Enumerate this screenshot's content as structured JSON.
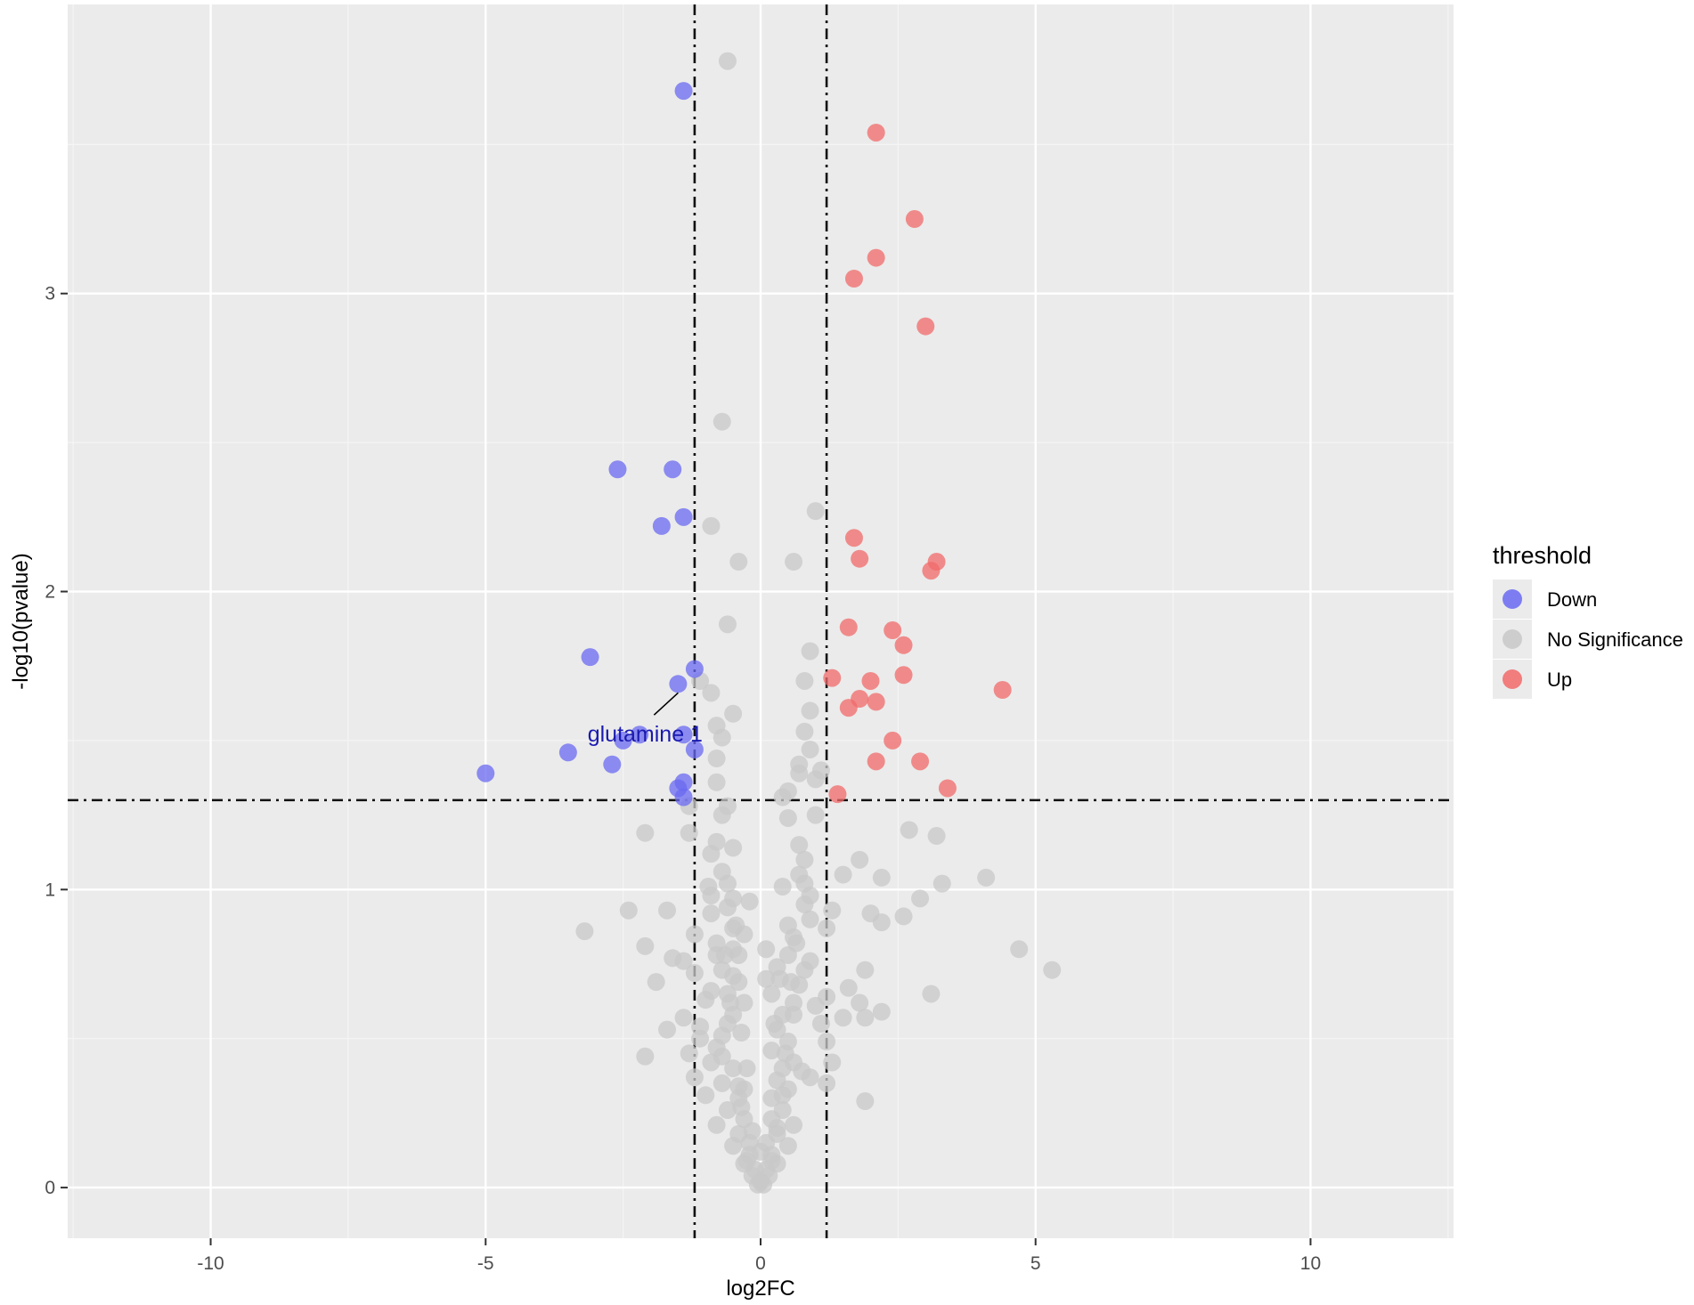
{
  "chart_data": {
    "type": "scatter",
    "xlabel": "log2FC",
    "ylabel": "-log10(pvalue)",
    "xlim": [
      -12.6,
      12.6
    ],
    "ylim": [
      -0.17,
      3.97
    ],
    "x_ticks": [
      -10,
      -5,
      0,
      5,
      10
    ],
    "x_tick_labels": [
      "-10",
      "-5",
      "0",
      "5",
      "10"
    ],
    "y_ticks": [
      0,
      1,
      2,
      3
    ],
    "y_tick_labels": [
      "0",
      "1",
      "2",
      "3"
    ],
    "grid": true,
    "background": "#ebebeb",
    "reference_lines": {
      "vertical_x": [
        -1.2,
        1.2
      ],
      "horizontal_y": 1.3,
      "style": "dashed"
    },
    "legend": {
      "title": "threshold",
      "position": "right",
      "entries": [
        {
          "label": "Down",
          "color": "#6a6af2"
        },
        {
          "label": "No Significance",
          "color": "#c8c8c8"
        },
        {
          "label": "Up",
          "color": "#f26a6a"
        }
      ]
    },
    "annotations": [
      {
        "text": "glutamine 1",
        "x": -2.1,
        "y": 1.52,
        "point": [
          -1.5,
          1.69
        ],
        "color": "#1a1ab0"
      }
    ],
    "series": [
      {
        "name": "Down",
        "color": "#6a6af2",
        "points": [
          [
            -1.4,
            3.68
          ],
          [
            -2.6,
            2.41
          ],
          [
            -1.6,
            2.41
          ],
          [
            -1.4,
            2.25
          ],
          [
            -1.8,
            2.22
          ],
          [
            -3.1,
            1.78
          ],
          [
            -1.2,
            1.74
          ],
          [
            -1.5,
            1.69
          ],
          [
            -2.2,
            1.52
          ],
          [
            -2.5,
            1.5
          ],
          [
            -1.4,
            1.52
          ],
          [
            -1.2,
            1.47
          ],
          [
            -3.5,
            1.46
          ],
          [
            -2.7,
            1.42
          ],
          [
            -5.0,
            1.39
          ],
          [
            -1.4,
            1.36
          ],
          [
            -1.5,
            1.34
          ],
          [
            -1.4,
            1.31
          ]
        ]
      },
      {
        "name": "No Significance",
        "color": "#c8c8c8",
        "points": [
          [
            -0.6,
            3.78
          ],
          [
            -0.7,
            2.57
          ],
          [
            1.0,
            2.27
          ],
          [
            -0.9,
            2.22
          ],
          [
            -0.4,
            2.1
          ],
          [
            0.6,
            2.1
          ],
          [
            -0.6,
            1.89
          ],
          [
            0.9,
            1.8
          ],
          [
            -1.1,
            1.7
          ],
          [
            0.8,
            1.7
          ],
          [
            -0.9,
            1.66
          ],
          [
            0.9,
            1.6
          ],
          [
            -0.5,
            1.59
          ],
          [
            -0.8,
            1.55
          ],
          [
            -0.7,
            1.51
          ],
          [
            0.8,
            1.53
          ],
          [
            -0.8,
            1.44
          ],
          [
            0.9,
            1.47
          ],
          [
            -0.8,
            1.36
          ],
          [
            0.7,
            1.39
          ],
          [
            1.0,
            1.37
          ],
          [
            0.4,
            1.31
          ],
          [
            0.5,
            1.33
          ],
          [
            -0.7,
            1.25
          ],
          [
            -0.6,
            1.28
          ],
          [
            0.5,
            1.24
          ],
          [
            1.0,
            1.25
          ],
          [
            -1.3,
            1.28
          ],
          [
            -2.1,
            1.19
          ],
          [
            -1.3,
            1.19
          ],
          [
            -0.8,
            1.16
          ],
          [
            -0.5,
            1.14
          ],
          [
            0.7,
            1.15
          ],
          [
            -0.9,
            1.12
          ],
          [
            0.8,
            1.1
          ],
          [
            1.8,
            1.1
          ],
          [
            -0.7,
            1.06
          ],
          [
            0.7,
            1.05
          ],
          [
            1.5,
            1.05
          ],
          [
            2.2,
            1.04
          ],
          [
            4.1,
            1.04
          ],
          [
            -0.6,
            1.02
          ],
          [
            0.4,
            1.01
          ],
          [
            0.8,
            1.02
          ],
          [
            3.3,
            1.02
          ],
          [
            -0.9,
            0.98
          ],
          [
            -0.5,
            0.97
          ],
          [
            0.9,
            0.98
          ],
          [
            2.9,
            0.97
          ],
          [
            -0.2,
            0.96
          ],
          [
            -0.6,
            0.94
          ],
          [
            0.8,
            0.95
          ],
          [
            1.3,
            0.93
          ],
          [
            -2.4,
            0.93
          ],
          [
            -1.7,
            0.93
          ],
          [
            2.0,
            0.92
          ],
          [
            2.6,
            0.91
          ],
          [
            2.2,
            0.89
          ],
          [
            -0.5,
            0.87
          ],
          [
            0.5,
            0.88
          ],
          [
            1.2,
            0.87
          ],
          [
            -3.2,
            0.86
          ],
          [
            -1.2,
            0.85
          ],
          [
            -0.3,
            0.85
          ],
          [
            0.6,
            0.84
          ],
          [
            -0.8,
            0.82
          ],
          [
            -0.5,
            0.8
          ],
          [
            0.1,
            0.8
          ],
          [
            -2.1,
            0.81
          ],
          [
            4.7,
            0.8
          ],
          [
            -0.8,
            0.78
          ],
          [
            -0.4,
            0.78
          ],
          [
            0.5,
            0.78
          ],
          [
            -1.6,
            0.77
          ],
          [
            -1.4,
            0.76
          ],
          [
            0.9,
            0.76
          ],
          [
            0.3,
            0.74
          ],
          [
            -0.7,
            0.73
          ],
          [
            0.8,
            0.73
          ],
          [
            -1.2,
            0.72
          ],
          [
            0.1,
            0.7
          ],
          [
            1.9,
            0.73
          ],
          [
            5.3,
            0.73
          ],
          [
            -1.9,
            0.69
          ],
          [
            -0.9,
            0.66
          ],
          [
            -0.4,
            0.69
          ],
          [
            0.7,
            0.68
          ],
          [
            1.6,
            0.67
          ],
          [
            -0.6,
            0.65
          ],
          [
            0.2,
            0.65
          ],
          [
            1.2,
            0.64
          ],
          [
            3.1,
            0.65
          ],
          [
            -0.3,
            0.62
          ],
          [
            0.6,
            0.62
          ],
          [
            1.8,
            0.62
          ],
          [
            -1.4,
            0.57
          ],
          [
            -0.5,
            0.58
          ],
          [
            0.4,
            0.58
          ],
          [
            1.5,
            0.57
          ],
          [
            1.9,
            0.57
          ],
          [
            2.2,
            0.59
          ],
          [
            -1.7,
            0.53
          ],
          [
            -1.1,
            0.54
          ],
          [
            -0.7,
            0.51
          ],
          [
            0.3,
            0.53
          ],
          [
            -0.8,
            0.47
          ],
          [
            0.5,
            0.49
          ],
          [
            1.2,
            0.49
          ],
          [
            -1.3,
            0.45
          ],
          [
            0.2,
            0.46
          ],
          [
            -2.1,
            0.44
          ],
          [
            -0.9,
            0.42
          ],
          [
            0.6,
            0.42
          ],
          [
            1.3,
            0.42
          ],
          [
            -0.5,
            0.4
          ],
          [
            0.4,
            0.4
          ],
          [
            -1.2,
            0.37
          ],
          [
            -0.7,
            0.35
          ],
          [
            0.3,
            0.36
          ],
          [
            0.9,
            0.37
          ],
          [
            -0.3,
            0.33
          ],
          [
            0.5,
            0.33
          ],
          [
            1.2,
            0.35
          ],
          [
            -1.0,
            0.31
          ],
          [
            -0.4,
            0.3
          ],
          [
            0.2,
            0.3
          ],
          [
            1.9,
            0.29
          ],
          [
            -0.6,
            0.26
          ],
          [
            0.4,
            0.26
          ],
          [
            -0.3,
            0.23
          ],
          [
            0.2,
            0.23
          ],
          [
            -0.8,
            0.21
          ],
          [
            0.6,
            0.21
          ],
          [
            -0.4,
            0.18
          ],
          [
            0.3,
            0.18
          ],
          [
            -0.2,
            0.15
          ],
          [
            0.1,
            0.15
          ],
          [
            -0.5,
            0.14
          ],
          [
            0.5,
            0.14
          ],
          [
            -0.2,
            0.11
          ],
          [
            0.2,
            0.11
          ],
          [
            -0.3,
            0.08
          ],
          [
            0.3,
            0.08
          ],
          [
            -0.1,
            0.06
          ],
          [
            0.1,
            0.06
          ],
          [
            -0.15,
            0.04
          ],
          [
            0.15,
            0.04
          ],
          [
            0.0,
            0.02
          ],
          [
            -0.05,
            0.01
          ],
          [
            0.05,
            0.01
          ],
          [
            -0.45,
            0.88
          ],
          [
            -0.35,
            0.52
          ],
          [
            -0.55,
            0.62
          ],
          [
            0.35,
            0.7
          ],
          [
            0.25,
            0.55
          ],
          [
            -0.25,
            0.4
          ],
          [
            0.45,
            0.45
          ],
          [
            -0.6,
            0.55
          ],
          [
            0.6,
            0.58
          ],
          [
            -0.35,
            0.27
          ],
          [
            0.3,
            0.2
          ],
          [
            -0.15,
            0.19
          ],
          [
            0.0,
            0.12
          ],
          [
            -0.25,
            0.09
          ],
          [
            0.2,
            0.09
          ],
          [
            -0.4,
            0.34
          ],
          [
            0.4,
            0.31
          ],
          [
            -0.7,
            0.44
          ],
          [
            0.75,
            0.39
          ],
          [
            -0.5,
            0.71
          ],
          [
            0.55,
            0.69
          ],
          [
            -0.65,
            0.78
          ],
          [
            0.65,
            0.82
          ],
          [
            -1.0,
            0.63
          ],
          [
            1.0,
            0.61
          ],
          [
            -1.1,
            0.5
          ],
          [
            1.1,
            0.55
          ],
          [
            -0.9,
            0.92
          ],
          [
            0.9,
            0.9
          ],
          [
            -0.95,
            1.01
          ],
          [
            2.7,
            1.2
          ],
          [
            3.2,
            1.18
          ],
          [
            1.1,
            1.4
          ],
          [
            0.7,
            1.42
          ]
        ]
      },
      {
        "name": "Up",
        "color": "#f26a6a",
        "points": [
          [
            2.1,
            3.54
          ],
          [
            2.8,
            3.25
          ],
          [
            2.1,
            3.12
          ],
          [
            1.7,
            3.05
          ],
          [
            3.0,
            2.89
          ],
          [
            1.7,
            2.18
          ],
          [
            3.2,
            2.1
          ],
          [
            1.8,
            2.11
          ],
          [
            3.1,
            2.07
          ],
          [
            1.6,
            1.88
          ],
          [
            2.4,
            1.87
          ],
          [
            2.6,
            1.82
          ],
          [
            2.6,
            1.72
          ],
          [
            1.3,
            1.71
          ],
          [
            2.0,
            1.7
          ],
          [
            4.4,
            1.67
          ],
          [
            1.8,
            1.64
          ],
          [
            2.1,
            1.63
          ],
          [
            1.6,
            1.61
          ],
          [
            2.4,
            1.5
          ],
          [
            2.9,
            1.43
          ],
          [
            2.1,
            1.43
          ],
          [
            3.4,
            1.34
          ],
          [
            1.4,
            1.32
          ]
        ]
      }
    ]
  }
}
